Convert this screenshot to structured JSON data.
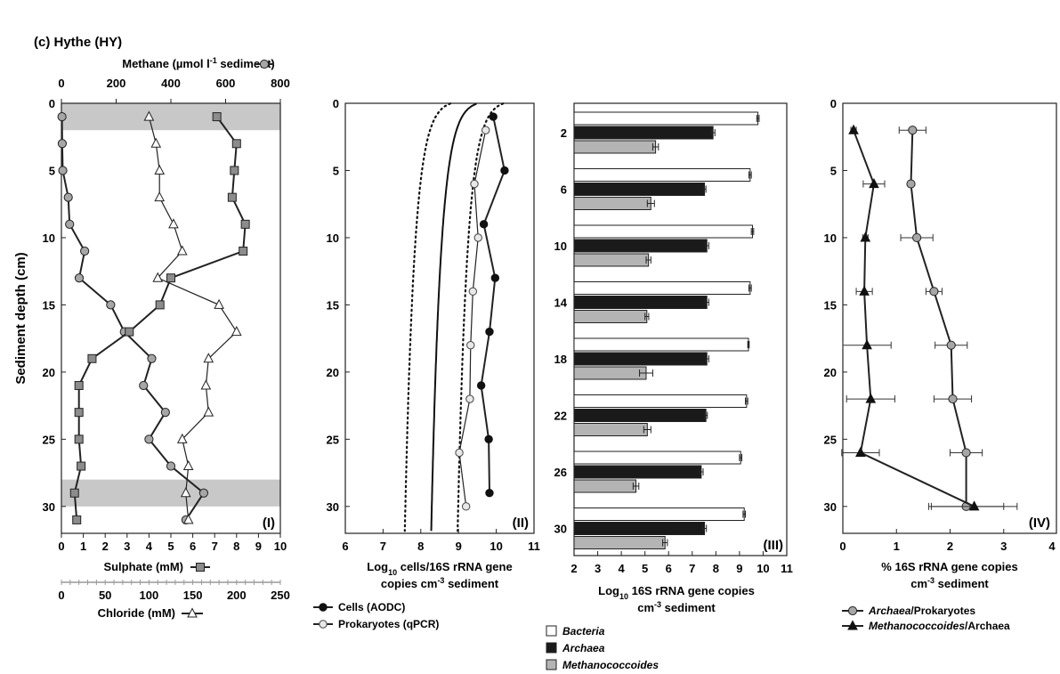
{
  "title": "(c) Hythe (HY)",
  "colors": {
    "grey_band": "#c8c8c8",
    "archaea_bar": "#1a1a1a",
    "methano_bar": "#b4b4b4",
    "bacteria_bar": "#ffffff",
    "marker_grey": "#a6a6a6"
  },
  "chart_data": [
    {
      "panel": "(I)",
      "type": "line",
      "ylabel": "Sediment depth (cm)",
      "ylim": [
        32,
        0
      ],
      "yticks": [
        0,
        5,
        10,
        15,
        20,
        25,
        30
      ],
      "shaded_depths": [
        [
          0,
          2
        ],
        [
          28,
          30
        ]
      ],
      "axes": {
        "methane": {
          "label": "Methane (µmol l",
          "label_sup": "-1",
          "label_end": " sediment)",
          "lim": [
            0,
            800
          ],
          "ticks": [
            0,
            200,
            400,
            600,
            800
          ]
        },
        "sulphate": {
          "label": "Sulphate (mM)",
          "lim": [
            0,
            10
          ],
          "ticks": [
            0,
            1,
            2,
            3,
            4,
            5,
            6,
            7,
            8,
            9,
            10
          ]
        },
        "chloride": {
          "label": "Chloride (mM)",
          "lim": [
            0,
            250
          ],
          "ticks": [
            0,
            50,
            100,
            150,
            200,
            250
          ]
        }
      },
      "series": [
        {
          "name": "Methane",
          "axis": "methane",
          "marker": "circle",
          "depth": [
            1,
            3,
            5,
            7,
            9,
            11,
            13,
            15,
            17,
            19,
            21,
            23,
            25,
            27,
            29,
            31
          ],
          "values": [
            2,
            3,
            5,
            25,
            30,
            85,
            65,
            180,
            230,
            330,
            300,
            380,
            320,
            400,
            520,
            455
          ]
        },
        {
          "name": "Sulphate",
          "axis": "sulphate",
          "marker": "square",
          "depth": [
            1,
            3,
            5,
            7,
            9,
            11,
            13,
            15,
            17,
            19,
            21,
            23,
            25,
            27,
            29,
            31
          ],
          "values": [
            7.1,
            8.0,
            7.9,
            7.8,
            8.4,
            8.3,
            5.0,
            4.5,
            3.1,
            1.4,
            0.8,
            0.8,
            0.8,
            0.9,
            0.6,
            0.7
          ]
        },
        {
          "name": "Chloride",
          "axis": "chloride",
          "marker": "triangle",
          "depth": [
            1,
            3,
            5,
            7,
            9,
            11,
            13,
            15,
            17,
            19,
            21,
            23,
            25,
            27,
            29,
            31
          ],
          "values": [
            100,
            108,
            112,
            112,
            128,
            138,
            110,
            180,
            200,
            168,
            165,
            168,
            138,
            145,
            142,
            145
          ]
        }
      ]
    },
    {
      "panel": "(II)",
      "type": "line",
      "xlabel": "Log",
      "xlabel_sub": "10",
      "xlabel_rest": " cells/16S rRNA gene",
      "xlabel_line2": "copies cm",
      "xlabel_sup": "-3",
      "xlabel_end": " sediment",
      "xlim": [
        6,
        11
      ],
      "xticks": [
        6,
        7,
        8,
        9,
        10,
        11
      ],
      "ylim": [
        32,
        0
      ],
      "yticks": [
        0,
        5,
        10,
        15,
        20,
        25,
        30
      ],
      "series": [
        {
          "name": "Cells (AODC)",
          "marker": "filled-circle",
          "depth": [
            1,
            5,
            9,
            13,
            17,
            21,
            25,
            29
          ],
          "values": [
            9.92,
            10.22,
            9.67,
            9.97,
            9.82,
            9.6,
            9.8,
            9.82
          ]
        },
        {
          "name": "Prokaryotes (qPCR)",
          "marker": "open-circle",
          "depth": [
            2,
            6,
            10,
            14,
            18,
            22,
            26,
            30
          ],
          "values": [
            9.72,
            9.42,
            9.52,
            9.38,
            9.32,
            9.3,
            9.02,
            9.2
          ]
        }
      ]
    },
    {
      "panel": "(III)",
      "type": "bar",
      "orientation": "horizontal",
      "xlabel": "Log",
      "xlabel_sub": "10",
      "xlabel_rest": " 16S rRNA gene copies",
      "xlabel_line2": "cm",
      "xlabel_sup": "-3",
      "xlabel_end": " sediment",
      "xlim": [
        2,
        11
      ],
      "xticks": [
        2,
        3,
        4,
        5,
        6,
        7,
        8,
        9,
        10,
        11
      ],
      "categories": [
        "2",
        "6",
        "10",
        "14",
        "18",
        "22",
        "26",
        "30"
      ],
      "series": [
        {
          "name": "Bacteria",
          "values": [
            9.78,
            9.45,
            9.55,
            9.45,
            9.38,
            9.3,
            9.05,
            9.2
          ],
          "err": [
            0.05,
            0.05,
            0.05,
            0.05,
            0.03,
            0.05,
            0.05,
            0.05
          ]
        },
        {
          "name": "Archaea",
          "values": [
            7.88,
            7.52,
            7.62,
            7.62,
            7.62,
            7.58,
            7.38,
            7.52
          ],
          "err": [
            0.08,
            0.06,
            0.08,
            0.08,
            0.08,
            0.06,
            0.08,
            0.08
          ]
        },
        {
          "name": "Methanococcoides",
          "values": [
            5.45,
            5.25,
            5.15,
            5.08,
            5.05,
            5.1,
            4.62,
            5.85
          ],
          "err": [
            0.12,
            0.15,
            0.1,
            0.08,
            0.28,
            0.15,
            0.12,
            0.1
          ]
        }
      ]
    },
    {
      "panel": "(IV)",
      "type": "line",
      "xlabel": "% 16S rRNA gene copies",
      "xlabel_line2": "cm",
      "xlabel_sup": "-3",
      "xlabel_end": " sediment",
      "xlim": [
        0,
        4
      ],
      "xticks": [
        0,
        1,
        2,
        3,
        4
      ],
      "ylim": [
        32,
        0
      ],
      "yticks": [
        0,
        5,
        10,
        15,
        20,
        25,
        30
      ],
      "series": [
        {
          "name": "Archaea/Prokaryotes",
          "name_a": "Archaea",
          "name_b": "/Prokaryotes",
          "marker": "grey-circle",
          "depth": [
            2,
            6,
            10,
            14,
            18,
            22,
            26,
            30
          ],
          "values": [
            1.3,
            1.27,
            1.38,
            1.7,
            2.02,
            2.05,
            2.3,
            2.3
          ],
          "err": [
            0.25,
            0.05,
            0.3,
            0.15,
            0.3,
            0.35,
            0.3,
            0.7
          ]
        },
        {
          "name": "Methanococcoides/Archaea",
          "name_a": "Methanococcoides",
          "name_b": "/Archaea",
          "marker": "triangle",
          "depth": [
            2,
            6,
            10,
            14,
            18,
            22,
            26,
            30
          ],
          "values": [
            0.2,
            0.58,
            0.42,
            0.4,
            0.45,
            0.52,
            0.33,
            2.45
          ],
          "err": [
            0.05,
            0.2,
            0.05,
            0.15,
            0.45,
            0.45,
            0.35,
            0.8
          ]
        }
      ]
    }
  ]
}
